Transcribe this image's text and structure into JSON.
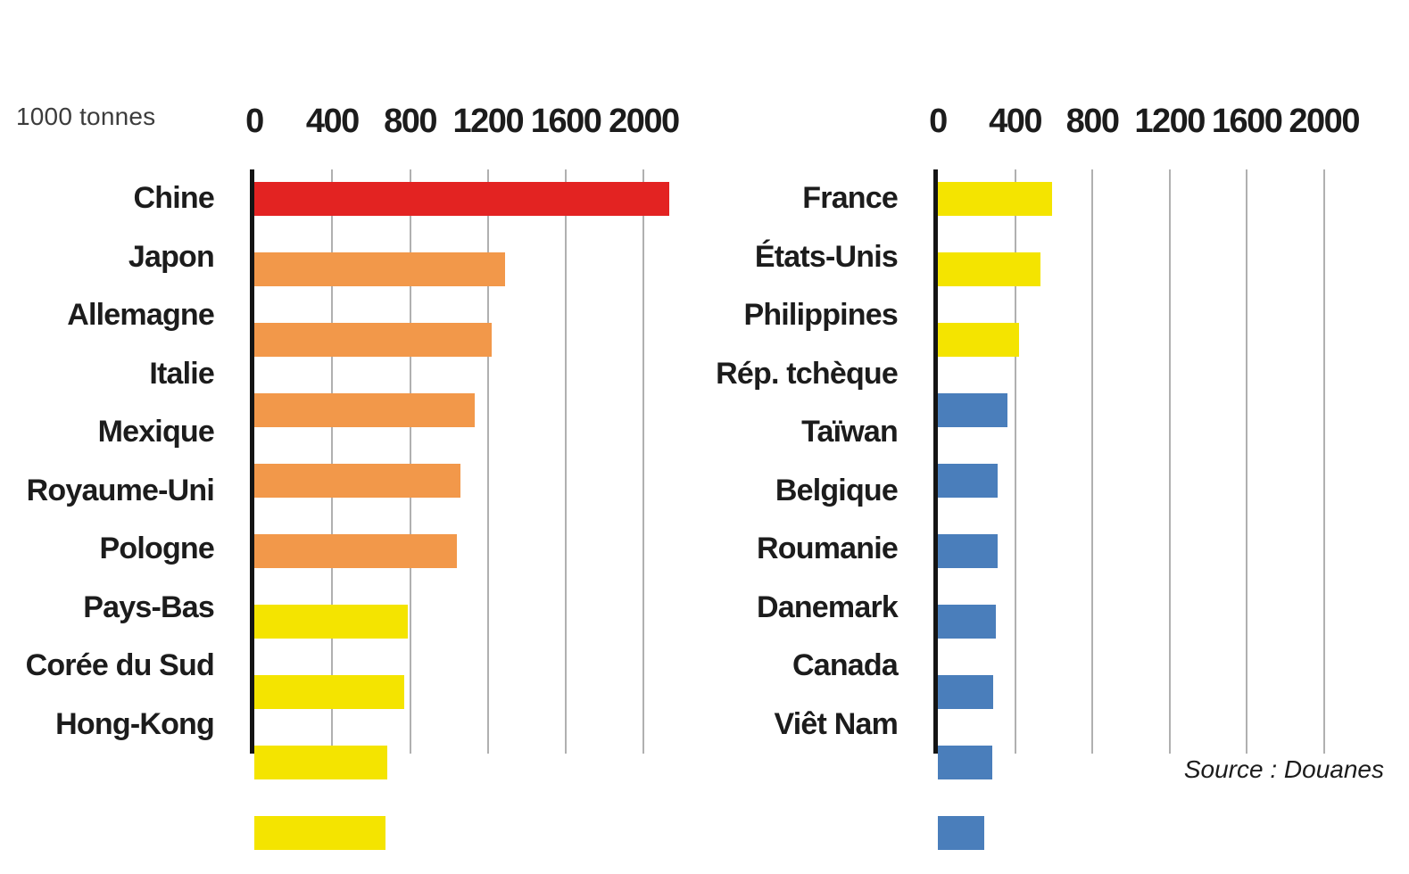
{
  "figure": {
    "unit_label": "1000 tonnes",
    "source": "Source : Douanes"
  },
  "palette": {
    "red": "#E32322",
    "orange": "#F2984A",
    "yellow": "#F4E400",
    "blue": "#4A7EBB",
    "gridline": "#B0B0B0",
    "axis": "#141414",
    "text": "#1C1C1C"
  },
  "chart_data": [
    {
      "type": "bar",
      "orientation": "horizontal",
      "title": "",
      "xlabel": "1000 tonnes",
      "ylabel": "",
      "xlim": [
        0,
        2200
      ],
      "xticks": [
        0,
        400,
        800,
        1200,
        1600,
        2000
      ],
      "grid": true,
      "categories": [
        "Chine",
        "Japon",
        "Allemagne",
        "Italie",
        "Mexique",
        "Royaume-Uni",
        "Pologne",
        "Pays-Bas",
        "Corée du Sud",
        "Hong-Kong"
      ],
      "values": [
        2130,
        1290,
        1220,
        1130,
        1060,
        1040,
        790,
        770,
        685,
        675
      ],
      "bar_colors": [
        "red",
        "orange",
        "orange",
        "orange",
        "orange",
        "orange",
        "yellow",
        "yellow",
        "yellow",
        "yellow"
      ]
    },
    {
      "type": "bar",
      "orientation": "horizontal",
      "title": "",
      "xlabel": "1000 tonnes",
      "ylabel": "",
      "xlim": [
        0,
        2080
      ],
      "xticks": [
        0,
        400,
        800,
        1200,
        1600,
        2000
      ],
      "grid": true,
      "categories": [
        "France",
        "États-Unis",
        "Philippines",
        "Rép. tchèque",
        "Taïwan",
        "Belgique",
        "Roumanie",
        "Danemark",
        "Canada",
        "Viêt Nam"
      ],
      "values": [
        590,
        530,
        420,
        360,
        310,
        310,
        300,
        285,
        280,
        240
      ],
      "bar_colors": [
        "yellow",
        "yellow",
        "yellow",
        "blue",
        "blue",
        "blue",
        "blue",
        "blue",
        "blue",
        "blue"
      ]
    }
  ]
}
